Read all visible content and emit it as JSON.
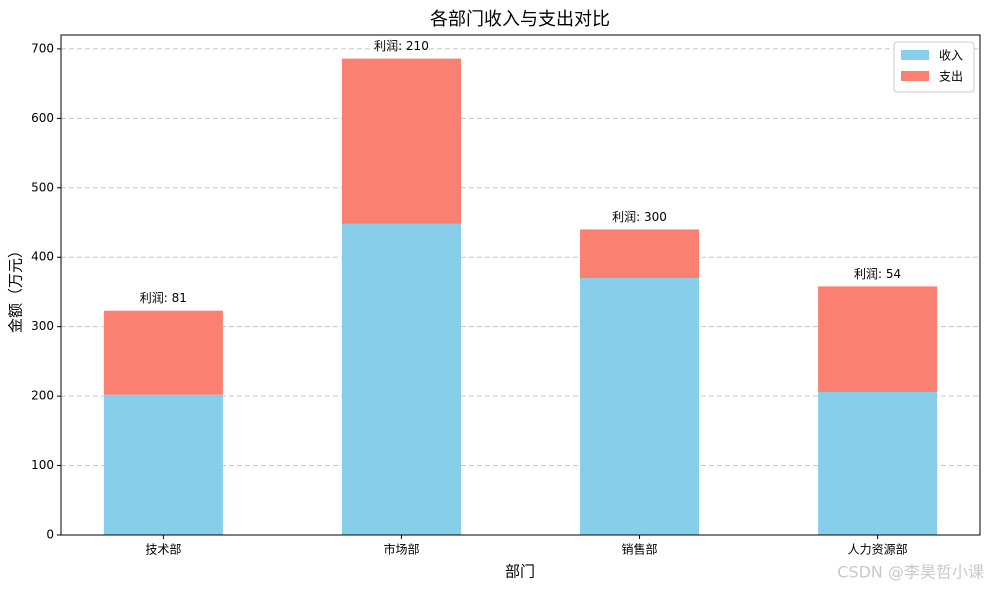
{
  "chart_data": {
    "type": "stacked_bar",
    "title": "各部门收入与支出对比",
    "x_label": "部门",
    "y_label": "金额（万元）",
    "categories": [
      "技术部",
      "市场部",
      "销售部",
      "人力资源部"
    ],
    "series": [
      {
        "name": "收入",
        "color": "#87ceeb",
        "values": [
          202,
          448,
          370,
          206
        ]
      },
      {
        "name": "支出",
        "color": "#fa8072",
        "values": [
          121,
          238,
          70,
          152
        ]
      }
    ],
    "annotations": [
      "利润: 81",
      "利润: 210",
      "利润: 300",
      "利润: 54"
    ],
    "ylim": [
      0,
      720
    ],
    "yticks": [
      0,
      100,
      200,
      300,
      400,
      500,
      600,
      700
    ],
    "grid": true,
    "legend": "upper right",
    "watermark": "CSDN @李昊哲小课"
  }
}
